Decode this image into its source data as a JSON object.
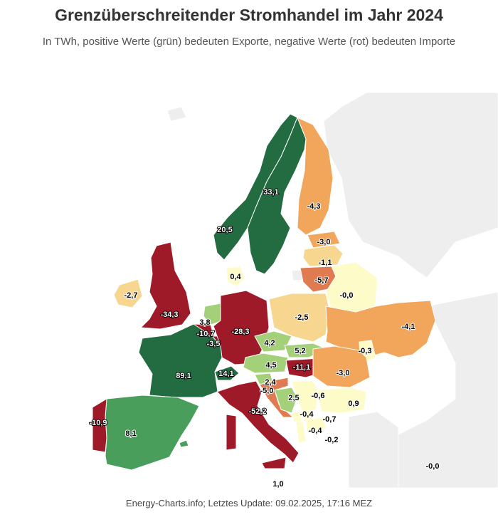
{
  "title": "Grenzüberschreitender Stromhandel im Jahr 2024",
  "subtitle": "In TWh, positive Werte (grün) bedeuten Exporte, negative Werte (rot) bedeuten Importe",
  "credit": "Energy-Charts.info; Letztes Update: 09.02.2025, 17:16 MEZ",
  "colors": {
    "strong_export": "#236b40",
    "export": "#4a9e5c",
    "light_export": "#a4d07a",
    "neutral": "#fdfbc7",
    "light_import": "#f7d690",
    "import": "#f2a65c",
    "strong_import": "#e07a50",
    "heavy_import": "#9e1a28",
    "no_data": "#eeeeee"
  },
  "countries": [
    {
      "code": "NO",
      "name": "Norwegen",
      "value": "20,5",
      "color": "strong_export"
    },
    {
      "code": "SE",
      "name": "Schweden",
      "value": "33,1",
      "color": "strong_export"
    },
    {
      "code": "FI",
      "name": "Finnland",
      "value": "-4,3",
      "color": "import"
    },
    {
      "code": "EE",
      "name": "Estland",
      "value": "-3,0",
      "color": "import"
    },
    {
      "code": "LV",
      "name": "Lettland",
      "value": "-1,1",
      "color": "light_import"
    },
    {
      "code": "LT",
      "name": "Litauen",
      "value": "-5,7",
      "color": "strong_import"
    },
    {
      "code": "BY",
      "name": "Belarus",
      "value": "-0,0",
      "color": "neutral"
    },
    {
      "code": "DK",
      "name": "Dänemark",
      "value": "0,4",
      "color": "neutral"
    },
    {
      "code": "IE",
      "name": "Irland",
      "value": "-2,7",
      "color": "light_import"
    },
    {
      "code": "GB",
      "name": "Großbritannien",
      "value": "-34,3",
      "color": "heavy_import"
    },
    {
      "code": "NL",
      "name": "Niederlande",
      "value": "3,8",
      "color": "light_export"
    },
    {
      "code": "BE",
      "name": "Belgien",
      "value": "-10,7",
      "color": "heavy_import"
    },
    {
      "code": "LU",
      "name": "Luxemburg",
      "value": "-3,5",
      "color": "heavy_import"
    },
    {
      "code": "DE",
      "name": "Deutschland",
      "value": "-28,3",
      "color": "heavy_import"
    },
    {
      "code": "PL",
      "name": "Polen",
      "value": "-2,5",
      "color": "light_import"
    },
    {
      "code": "UA",
      "name": "Ukraine",
      "value": "-4,1",
      "color": "import"
    },
    {
      "code": "MD",
      "name": "Moldau",
      "value": "-0,3",
      "color": "neutral"
    },
    {
      "code": "CZ",
      "name": "Tschechien",
      "value": "4,2",
      "color": "light_export"
    },
    {
      "code": "SK",
      "name": "Slowakei",
      "value": "5,2",
      "color": "light_export"
    },
    {
      "code": "AT",
      "name": "Österreich",
      "value": "4,5",
      "color": "light_export"
    },
    {
      "code": "HU",
      "name": "Ungarn",
      "value": "-11,1",
      "color": "heavy_import"
    },
    {
      "code": "RO",
      "name": "Rumänien",
      "value": "-3,0",
      "color": "import"
    },
    {
      "code": "FR",
      "name": "Frankreich",
      "value": "89,1",
      "color": "strong_export"
    },
    {
      "code": "CH",
      "name": "Schweiz",
      "value": "14,1",
      "color": "strong_export"
    },
    {
      "code": "SI",
      "name": "Slowenien",
      "value": "2,4",
      "color": "light_export"
    },
    {
      "code": "HR",
      "name": "Kroatien",
      "value": "-5,0",
      "color": "strong_import"
    },
    {
      "code": "BA",
      "name": "Bosnien und Herzegowina",
      "value": "2,5",
      "color": "light_export"
    },
    {
      "code": "RS",
      "name": "Serbien",
      "value": "-0,6",
      "color": "neutral"
    },
    {
      "code": "BG",
      "name": "Bulgarien",
      "value": "0,9",
      "color": "neutral"
    },
    {
      "code": "ME",
      "name": "Montenegro",
      "value": "-0,4",
      "color": "neutral"
    },
    {
      "code": "XK",
      "name": "Kosovo",
      "value": "-0,7",
      "color": "neutral"
    },
    {
      "code": "AL",
      "name": "Albanien",
      "value": "-0,4",
      "color": "neutral"
    },
    {
      "code": "MK",
      "name": "Nordmazedonien",
      "value": "-0,2",
      "color": "neutral"
    },
    {
      "code": "IT",
      "name": "Italien",
      "value": "-52,2",
      "color": "heavy_import"
    },
    {
      "code": "ES",
      "name": "Spanien",
      "value": "8,1",
      "color": "export"
    },
    {
      "code": "PT",
      "name": "Portugal",
      "value": "-10,9",
      "color": "heavy_import"
    },
    {
      "code": "TR",
      "name": "Türkei",
      "value": "-0,0",
      "color": "no_data"
    },
    {
      "code": "MT",
      "name": "Malta",
      "value": "1,0",
      "color": "neutral"
    }
  ]
}
